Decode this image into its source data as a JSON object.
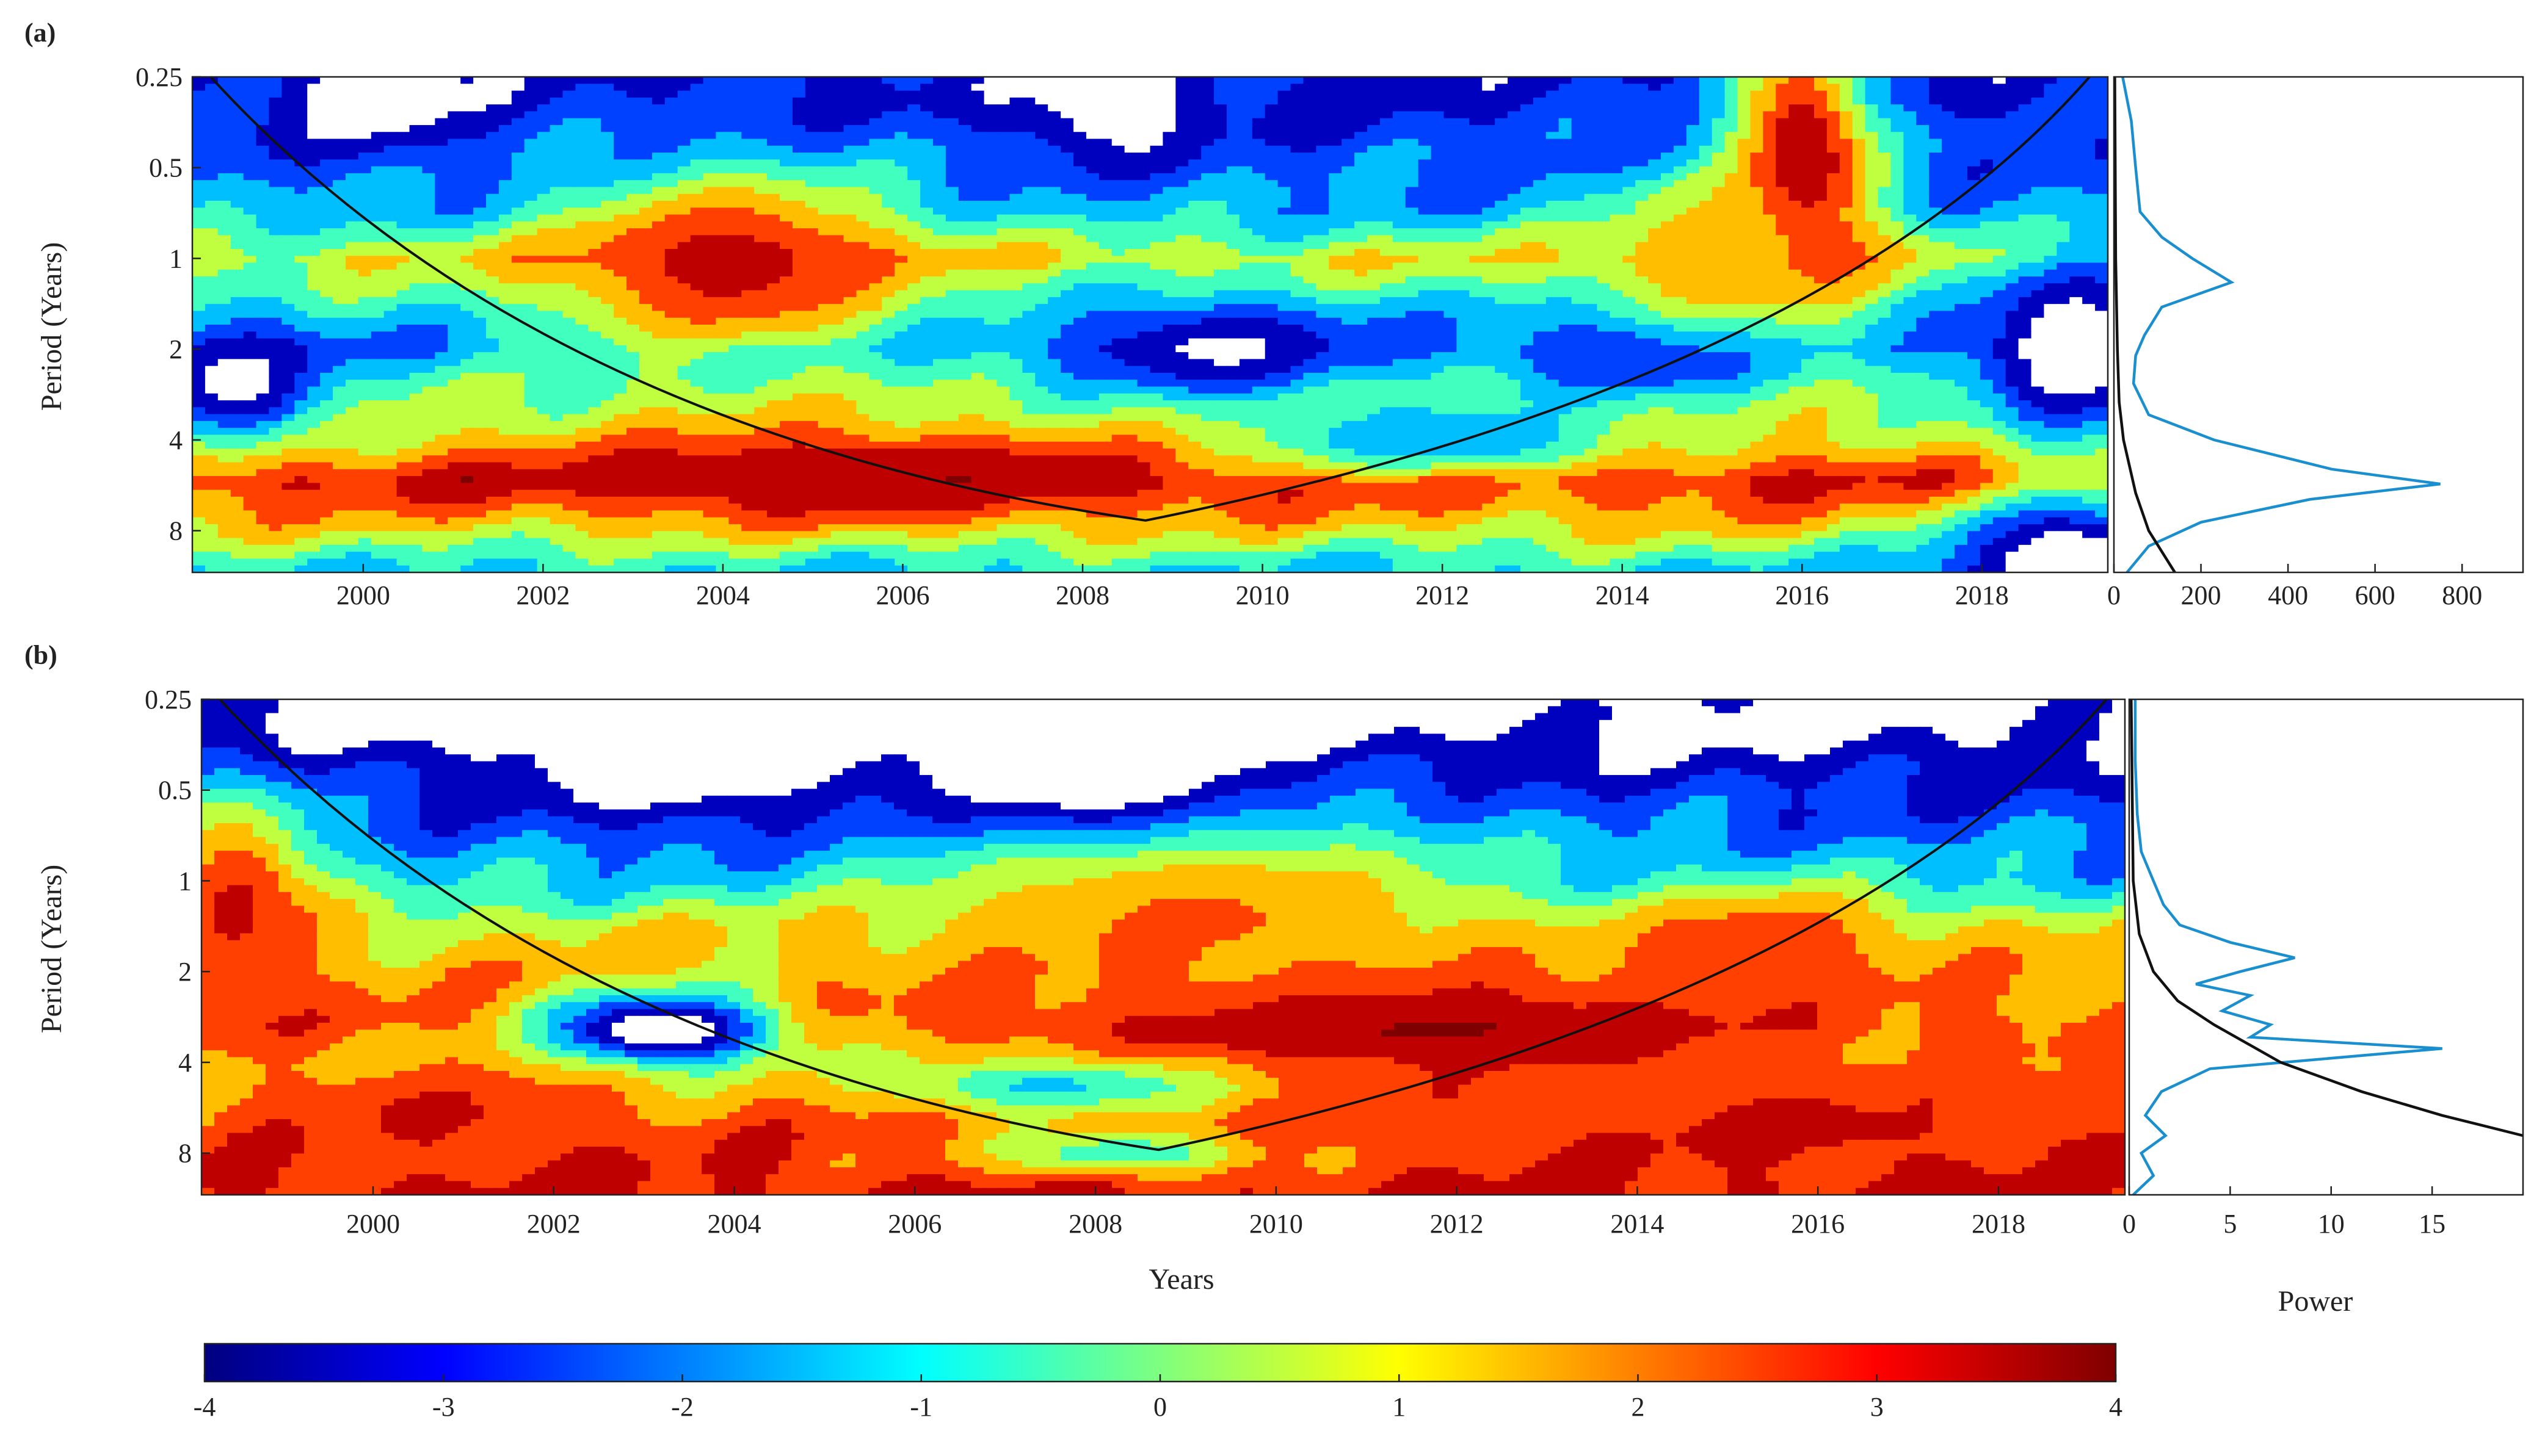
{
  "chart_data": [
    {
      "type": "heatmap",
      "panel_label": "(a)",
      "ylabel": "Period (Years)",
      "x_ticks": [
        "2000",
        "2002",
        "2004",
        "2006",
        "2008",
        "2010",
        "2012",
        "2014",
        "2016",
        "2018"
      ],
      "x_range": [
        1998.1,
        2019.4
      ],
      "y_ticks": [
        "0.25",
        "0.5",
        "1",
        "2",
        "4",
        "8"
      ],
      "y_scale": "log2",
      "y_range": [
        0.25,
        11
      ],
      "power_bands": [
        {
          "period": 0.3,
          "level": -3.2
        },
        {
          "period": 0.5,
          "level": -2.4
        },
        {
          "period": 0.7,
          "level": -1.6
        },
        {
          "period": 1.0,
          "level": 0.8
        },
        {
          "period": 1.4,
          "level": -0.8
        },
        {
          "period": 2.0,
          "level": -2.0
        },
        {
          "period": 2.8,
          "level": 0.0
        },
        {
          "period": 4.0,
          "level": 1.2
        },
        {
          "period": 5.5,
          "level": 3.3
        },
        {
          "period": 8.0,
          "level": 1.0
        },
        {
          "period": 10.5,
          "level": -1.0
        }
      ],
      "blobs": [
        {
          "x": 2004.1,
          "period": 1.05,
          "level": 3.4,
          "sx": 2.0,
          "sp": 0.5
        },
        {
          "x": 2005.5,
          "period": 5.2,
          "level": 4.0,
          "sx": 3.0,
          "sp": 0.22
        },
        {
          "x": 2016.0,
          "period": 0.5,
          "level": 4.4,
          "sx": 0.8,
          "sp": 0.8
        },
        {
          "x": 2009.5,
          "period": 2.0,
          "level": -4.2,
          "sx": 1.5,
          "sp": 0.25
        },
        {
          "x": 2014.5,
          "period": 2.0,
          "level": -4.2,
          "sx": 1.5,
          "sp": 0.25
        },
        {
          "x": 1998.6,
          "period": 2.6,
          "level": -4.5,
          "sx": 1.0,
          "sp": 0.3
        },
        {
          "x": 2019.0,
          "period": 2.0,
          "level": -5.0,
          "sx": 1.0,
          "sp": 0.5
        },
        {
          "x": 2019.0,
          "period": 10.0,
          "level": -5.0,
          "sx": 1.4,
          "sp": 0.35
        },
        {
          "x": 2012.0,
          "period": 4.0,
          "level": -2.0,
          "sx": 2.0,
          "sp": 0.2
        },
        {
          "x": 2008.3,
          "period": 0.3,
          "level": -5.0,
          "sx": 0.9,
          "sp": 0.3
        },
        {
          "x": 2000.2,
          "period": 0.28,
          "level": -5.0,
          "sx": 0.9,
          "sp": 0.3
        },
        {
          "x": 2015.0,
          "period": 1.0,
          "level": 1.6,
          "sx": 1.4,
          "sp": 0.5
        }
      ],
      "coi_vertex": [
        2008.7,
        7.4
      ],
      "global_spectrum": {
        "x_ticks": [
          "0",
          "200",
          "400",
          "600",
          "800"
        ],
        "x_range": [
          0,
          940
        ],
        "power": [
          {
            "period": 0.25,
            "value": 20
          },
          {
            "period": 0.35,
            "value": 40
          },
          {
            "period": 0.5,
            "value": 50
          },
          {
            "period": 0.7,
            "value": 60
          },
          {
            "period": 0.85,
            "value": 110
          },
          {
            "period": 1.0,
            "value": 180
          },
          {
            "period": 1.2,
            "value": 270
          },
          {
            "period": 1.45,
            "value": 110
          },
          {
            "period": 1.8,
            "value": 70
          },
          {
            "period": 2.1,
            "value": 50
          },
          {
            "period": 2.6,
            "value": 45
          },
          {
            "period": 3.3,
            "value": 80
          },
          {
            "period": 4.0,
            "value": 230
          },
          {
            "period": 5.0,
            "value": 500
          },
          {
            "period": 5.6,
            "value": 750
          },
          {
            "period": 6.3,
            "value": 450
          },
          {
            "period": 7.5,
            "value": 200
          },
          {
            "period": 9.0,
            "value": 80
          },
          {
            "period": 11.0,
            "value": 30
          }
        ],
        "significance": [
          {
            "period": 0.25,
            "value": 2
          },
          {
            "period": 1.0,
            "value": 4
          },
          {
            "period": 2.0,
            "value": 8
          },
          {
            "period": 3.0,
            "value": 12
          },
          {
            "period": 4.0,
            "value": 22
          },
          {
            "period": 6.0,
            "value": 50
          },
          {
            "period": 8.0,
            "value": 80
          },
          {
            "period": 11.0,
            "value": 140
          }
        ]
      }
    },
    {
      "type": "heatmap",
      "panel_label": "(b)",
      "ylabel": "Period (Years)",
      "xlabel": "Years",
      "x_ticks": [
        "2000",
        "2002",
        "2004",
        "2006",
        "2008",
        "2010",
        "2012",
        "2014",
        "2016",
        "2018"
      ],
      "x_range": [
        1998.1,
        2019.4
      ],
      "y_ticks": [
        "0.25",
        "0.5",
        "1",
        "2",
        "4",
        "8"
      ],
      "y_scale": "log2",
      "y_range": [
        0.25,
        11
      ],
      "power_bands": [
        {
          "period": 0.3,
          "level": -4.5
        },
        {
          "period": 0.5,
          "level": -3.0
        },
        {
          "period": 0.7,
          "level": -2.2
        },
        {
          "period": 1.0,
          "level": -1.2
        },
        {
          "period": 1.4,
          "level": 0.8
        },
        {
          "period": 2.0,
          "level": 1.6
        },
        {
          "period": 3.0,
          "level": 2.3
        },
        {
          "period": 4.0,
          "level": 1.6
        },
        {
          "period": 5.5,
          "level": 2.1
        },
        {
          "period": 8.0,
          "level": 2.7
        },
        {
          "period": 10.5,
          "level": 3.1
        }
      ],
      "blobs": [
        {
          "x": 2011.5,
          "period": 3.1,
          "level": 4.3,
          "sx": 3.5,
          "sp": 0.25
        },
        {
          "x": 2003.2,
          "period": 3.1,
          "level": -5.5,
          "sx": 1.3,
          "sp": 0.2
        },
        {
          "x": 2009.0,
          "period": 1.2,
          "level": 2.2,
          "sx": 3.0,
          "sp": 0.55
        },
        {
          "x": 1998.5,
          "period": 1.2,
          "level": 3.2,
          "sx": 0.9,
          "sp": 0.6
        },
        {
          "x": 2015.8,
          "period": 6.5,
          "level": 3.1,
          "sx": 3.5,
          "sp": 0.35
        },
        {
          "x": 2008.0,
          "period": 0.4,
          "level": -5.5,
          "sx": 2.0,
          "sp": 0.4
        },
        {
          "x": 2003.5,
          "period": 0.35,
          "level": -5.5,
          "sx": 1.8,
          "sp": 0.4
        },
        {
          "x": 2000.6,
          "period": 6.0,
          "level": 3.1,
          "sx": 1.5,
          "sp": 0.25
        },
        {
          "x": 2007.5,
          "period": 4.8,
          "level": -1.2,
          "sx": 1.8,
          "sp": 0.15
        },
        {
          "x": 2008.3,
          "period": 8.0,
          "level": -0.8,
          "sx": 1.5,
          "sp": 0.12
        },
        {
          "x": 2015.5,
          "period": 1.6,
          "level": 2.6,
          "sx": 1.4,
          "sp": 0.3
        }
      ],
      "coi_vertex": [
        2008.7,
        7.8
      ],
      "global_spectrum": {
        "xlabel": "Power",
        "x_ticks": [
          "0",
          "5",
          "10",
          "15"
        ],
        "x_range": [
          0,
          19.5
        ],
        "power": [
          {
            "period": 0.25,
            "value": 0.3
          },
          {
            "period": 0.4,
            "value": 0.3
          },
          {
            "period": 0.6,
            "value": 0.4
          },
          {
            "period": 0.8,
            "value": 0.6
          },
          {
            "period": 1.0,
            "value": 1.2
          },
          {
            "period": 1.2,
            "value": 1.7
          },
          {
            "period": 1.4,
            "value": 2.5
          },
          {
            "period": 1.6,
            "value": 5.0
          },
          {
            "period": 1.8,
            "value": 8.2
          },
          {
            "period": 2.0,
            "value": 5.5
          },
          {
            "period": 2.2,
            "value": 3.3
          },
          {
            "period": 2.4,
            "value": 6.0
          },
          {
            "period": 2.7,
            "value": 4.6
          },
          {
            "period": 3.0,
            "value": 7.0
          },
          {
            "period": 3.3,
            "value": 6.0
          },
          {
            "period": 3.6,
            "value": 15.5
          },
          {
            "period": 4.2,
            "value": 4.0
          },
          {
            "period": 5.0,
            "value": 1.6
          },
          {
            "period": 6.0,
            "value": 0.8
          },
          {
            "period": 7.0,
            "value": 1.8
          },
          {
            "period": 8.0,
            "value": 0.6
          },
          {
            "period": 9.5,
            "value": 1.2
          },
          {
            "period": 11.0,
            "value": 0.2
          }
        ],
        "significance": [
          {
            "period": 0.25,
            "value": 0.1
          },
          {
            "period": 1.0,
            "value": 0.2
          },
          {
            "period": 1.5,
            "value": 0.5
          },
          {
            "period": 2.0,
            "value": 1.2
          },
          {
            "period": 2.5,
            "value": 2.4
          },
          {
            "period": 3.0,
            "value": 4.2
          },
          {
            "period": 4.0,
            "value": 7.5
          },
          {
            "period": 5.0,
            "value": 11.5
          },
          {
            "period": 6.0,
            "value": 15.5
          },
          {
            "period": 7.0,
            "value": 19.5
          }
        ]
      }
    }
  ],
  "colorbar": {
    "ticks": [
      "-4",
      "-3",
      "-2",
      "-1",
      "0",
      "1",
      "2",
      "3",
      "4"
    ],
    "range": [
      -4,
      4
    ],
    "colormap": "jet",
    "stops": [
      "#00007f",
      "#0000ff",
      "#007fff",
      "#00ffff",
      "#7fff7f",
      "#ffff00",
      "#ff7f00",
      "#ff0000",
      "#7f0000"
    ]
  }
}
